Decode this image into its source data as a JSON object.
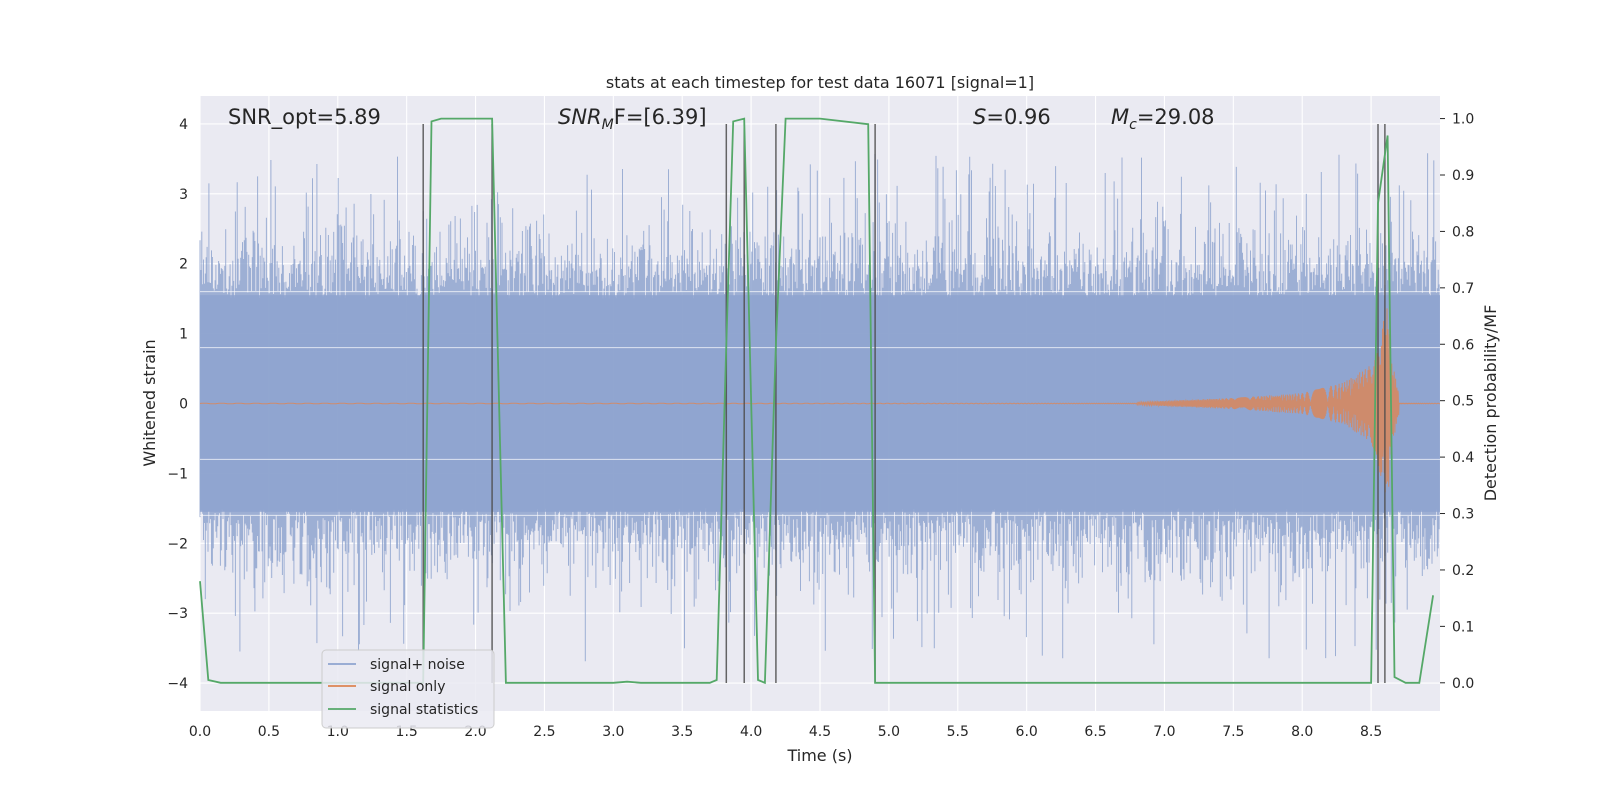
{
  "chart_data": {
    "type": "line",
    "title": "stats at each timestep for test data 16071 [signal=1]",
    "xlabel": "Time (s)",
    "ylabel_left": "Whitened strain",
    "ylabel_right": "Detection probability/MF",
    "xlim": [
      0.0,
      9.0
    ],
    "ylim_left": [
      -4.4,
      4.4
    ],
    "ylim_right": [
      -0.05,
      1.04
    ],
    "xticks": [
      "0.0",
      "0.5",
      "1.0",
      "1.5",
      "2.0",
      "2.5",
      "3.0",
      "3.5",
      "4.0",
      "4.5",
      "5.0",
      "5.5",
      "6.0",
      "6.5",
      "7.0",
      "7.5",
      "8.0",
      "8.5"
    ],
    "yticks_left": [
      "4",
      "3",
      "2",
      "1",
      "0",
      "−1",
      "−2",
      "−3",
      "−4"
    ],
    "yticks_right": [
      "1.0",
      "0.9",
      "0.8",
      "0.7",
      "0.6",
      "0.5",
      "0.4",
      "0.3",
      "0.2",
      "0.1",
      "0.0"
    ],
    "grid": true,
    "legend_position": "lower-left",
    "annotations": {
      "snr_opt": "SNR_opt=5.89",
      "snr_mf_label": "SNR",
      "snr_mf_sub": "M",
      "snr_mf_rest": "F=[6.39]",
      "s_label": "S",
      "s_value": "=0.96",
      "mc_label": "M",
      "mc_sub": "c",
      "mc_value": "=29.08"
    },
    "series": [
      {
        "name": "signal+ noise",
        "color": "#8fa4cf",
        "description": "whitened strain noise spanning about -2.5 to 2.5 with spikes to about ±3.5"
      },
      {
        "name": "signal only",
        "color": "#dd8452"
      },
      {
        "name": "signal statistics",
        "color": "#55a868",
        "x": [
          0.0,
          0.06,
          0.15,
          1.62,
          1.68,
          1.75,
          2.12,
          2.22,
          3.0,
          3.1,
          3.2,
          3.7,
          3.75,
          3.82,
          3.87,
          3.95,
          4.05,
          4.1,
          4.18,
          4.25,
          4.5,
          4.85,
          4.9,
          4.95,
          5.05,
          5.5,
          6.0,
          8.5,
          8.55,
          8.62,
          8.67,
          8.75,
          8.85,
          8.95
        ],
        "y": [
          0.18,
          0.005,
          0.0,
          0.0,
          0.995,
          1.0,
          1.0,
          0.0,
          0.0,
          0.002,
          0.0,
          0.0,
          0.005,
          0.6,
          0.995,
          1.0,
          0.005,
          0.0,
          0.6,
          1.0,
          1.0,
          0.99,
          0.0,
          0.0,
          0.0,
          0.0,
          0.0,
          0.0,
          0.85,
          0.97,
          0.01,
          0.0,
          0.0,
          0.155
        ]
      }
    ],
    "signal_envelope": {
      "x": [
        6.8,
        7.5,
        8.0,
        8.3,
        8.5,
        8.62,
        8.65,
        8.7
      ],
      "amp": [
        0.02,
        0.08,
        0.15,
        0.3,
        0.55,
        1.4,
        0.6,
        0.2
      ]
    },
    "vertical_markers": [
      1.62,
      2.12,
      3.82,
      3.95,
      4.18,
      4.9,
      8.55,
      8.6
    ],
    "legend": {
      "entries": [
        {
          "label": "signal+ noise",
          "color": "#8fa4cf"
        },
        {
          "label": "signal only",
          "color": "#dd8452"
        },
        {
          "label": "signal statistics",
          "color": "#55a868"
        }
      ]
    }
  }
}
